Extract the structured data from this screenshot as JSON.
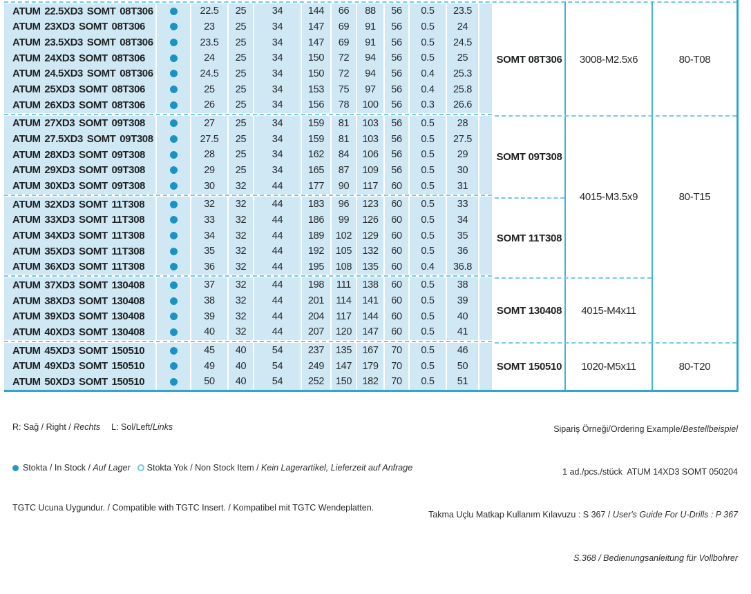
{
  "meta": {
    "colors": {
      "row_bg": "#cfe8f4",
      "stock_dot": "#1a93c4",
      "dash_line": "#74c9e3",
      "panel_line": "#45b2d6",
      "accent_edge": "#2ea6cf",
      "legend_open_ring": "#6ec9e6"
    },
    "stock_dot_meaning": "in-stock"
  },
  "table": {
    "groups": [
      {
        "insert": "SOMT 08T306",
        "screw": "3008-M2.5x6",
        "key": "80-T08",
        "rows": [
          {
            "name": "ATUM 22.5XD3 SOMT 08T306",
            "stock": "in-stock",
            "values": [
              "22.5",
              "25",
              "34",
              "144",
              "66",
              "88",
              "56",
              "0.5",
              "23.5"
            ]
          },
          {
            "name": "ATUM 23XD3 SOMT 08T306",
            "stock": "in-stock",
            "values": [
              "23",
              "25",
              "34",
              "147",
              "69",
              "91",
              "56",
              "0.5",
              "24"
            ]
          },
          {
            "name": "ATUM 23.5XD3 SOMT 08T306",
            "stock": "in-stock",
            "values": [
              "23.5",
              "25",
              "34",
              "147",
              "69",
              "91",
              "56",
              "0.5",
              "24.5"
            ]
          },
          {
            "name": "ATUM 24XD3 SOMT 08T306",
            "stock": "in-stock",
            "values": [
              "24",
              "25",
              "34",
              "150",
              "72",
              "94",
              "56",
              "0.5",
              "25"
            ]
          },
          {
            "name": "ATUM 24.5XD3 SOMT 08T306",
            "stock": "in-stock",
            "values": [
              "24.5",
              "25",
              "34",
              "150",
              "72",
              "94",
              "56",
              "0.4",
              "25.3"
            ]
          },
          {
            "name": "ATUM 25XD3 SOMT 08T306",
            "stock": "in-stock",
            "values": [
              "25",
              "25",
              "34",
              "153",
              "75",
              "97",
              "56",
              "0.4",
              "25.8"
            ]
          },
          {
            "name": "ATUM 26XD3 SOMT 08T306",
            "stock": "in-stock",
            "values": [
              "26",
              "25",
              "34",
              "156",
              "78",
              "100",
              "56",
              "0.3",
              "26.6"
            ]
          }
        ]
      },
      {
        "insert": "SOMT 09T308",
        "screw": "4015-M3.5x9",
        "key": "80-T15",
        "rows": [
          {
            "name": "ATUM 27XD3 SOMT 09T308",
            "stock": "in-stock",
            "values": [
              "27",
              "25",
              "34",
              "159",
              "81",
              "103",
              "56",
              "0.5",
              "28"
            ]
          },
          {
            "name": "ATUM 27.5XD3 SOMT 09T308",
            "stock": "in-stock",
            "values": [
              "27.5",
              "25",
              "34",
              "159",
              "81",
              "103",
              "56",
              "0.5",
              "27.5"
            ]
          },
          {
            "name": "ATUM 28XD3 SOMT 09T308",
            "stock": "in-stock",
            "values": [
              "28",
              "25",
              "34",
              "162",
              "84",
              "106",
              "56",
              "0.5",
              "29"
            ]
          },
          {
            "name": "ATUM 29XD3 SOMT 09T308",
            "stock": "in-stock",
            "values": [
              "29",
              "25",
              "34",
              "165",
              "87",
              "109",
              "56",
              "0.5",
              "30"
            ]
          },
          {
            "name": "ATUM 30XD3 SOMT 09T308",
            "stock": "in-stock",
            "values": [
              "30",
              "32",
              "44",
              "177",
              "90",
              "117",
              "60",
              "0.5",
              "31"
            ]
          }
        ]
      },
      {
        "insert": "SOMT 11T308",
        "screw": "4015-M3.5x9",
        "key": "80-T15",
        "rows": [
          {
            "name": "ATUM 32XD3 SOMT 11T308",
            "stock": "in-stock",
            "values": [
              "32",
              "32",
              "44",
              "183",
              "96",
              "123",
              "60",
              "0.5",
              "33"
            ]
          },
          {
            "name": "ATUM 33XD3 SOMT 11T308",
            "stock": "in-stock",
            "values": [
              "33",
              "32",
              "44",
              "186",
              "99",
              "126",
              "60",
              "0.5",
              "34"
            ]
          },
          {
            "name": "ATUM 34XD3 SOMT 11T308",
            "stock": "in-stock",
            "values": [
              "34",
              "32",
              "44",
              "189",
              "102",
              "129",
              "60",
              "0.5",
              "35"
            ]
          },
          {
            "name": "ATUM 35XD3 SOMT 11T308",
            "stock": "in-stock",
            "values": [
              "35",
              "32",
              "44",
              "192",
              "105",
              "132",
              "60",
              "0.5",
              "36"
            ]
          },
          {
            "name": "ATUM 36XD3 SOMT 11T308",
            "stock": "in-stock",
            "values": [
              "36",
              "32",
              "44",
              "195",
              "108",
              "135",
              "60",
              "0.4",
              "36.8"
            ]
          }
        ]
      },
      {
        "insert": "SOMT 130408",
        "screw": "4015-M4x11",
        "key": "80-T15",
        "rows": [
          {
            "name": "ATUM 37XD3 SOMT 130408",
            "stock": "in-stock",
            "values": [
              "37",
              "32",
              "44",
              "198",
              "111",
              "138",
              "60",
              "0.5",
              "38"
            ]
          },
          {
            "name": "ATUM 38XD3 SOMT 130408",
            "stock": "in-stock",
            "values": [
              "38",
              "32",
              "44",
              "201",
              "114",
              "141",
              "60",
              "0.5",
              "39"
            ]
          },
          {
            "name": "ATUM 39XD3 SOMT 130408",
            "stock": "in-stock",
            "values": [
              "39",
              "32",
              "44",
              "204",
              "117",
              "144",
              "60",
              "0.5",
              "40"
            ]
          },
          {
            "name": "ATUM 40XD3 SOMT 130408",
            "stock": "in-stock",
            "values": [
              "40",
              "32",
              "44",
              "207",
              "120",
              "147",
              "60",
              "0.5",
              "41"
            ]
          }
        ]
      },
      {
        "insert": "SOMT 150510",
        "screw": "1020-M5x11",
        "key": "80-T20",
        "rows": [
          {
            "name": "ATUM 45XD3 SOMT 150510",
            "stock": "in-stock",
            "values": [
              "45",
              "40",
              "54",
              "237",
              "135",
              "167",
              "70",
              "0.5",
              "46"
            ]
          },
          {
            "name": "ATUM 49XD3 SOMT 150510",
            "stock": "in-stock",
            "values": [
              "49",
              "40",
              "54",
              "249",
              "147",
              "179",
              "70",
              "0.5",
              "50"
            ]
          },
          {
            "name": "ATUM 50XD3 SOMT 150510",
            "stock": "in-stock",
            "values": [
              "50",
              "40",
              "54",
              "252",
              "150",
              "182",
              "70",
              "0.5",
              "51"
            ]
          }
        ]
      }
    ]
  },
  "panel": {
    "inserts": [
      "SOMT 08T306",
      "SOMT 09T308",
      "SOMT 11T308",
      "SOMT 130408",
      "SOMT 150510"
    ],
    "screws": [
      "3008-M2.5x6",
      "4015-M3.5x9",
      "4015-M4x11",
      "1020-M5x11"
    ],
    "keys": [
      "80-T08",
      "80-T15",
      "80-T20"
    ]
  },
  "footer": {
    "rl": [
      "R: Sağ / Right / ",
      "Rechts",
      "L: Sol/Left/",
      "Links"
    ],
    "stock": [
      "Stokta / In Stock / ",
      "Auf Lager",
      "Stokta Yok / Non Stock Item / ",
      "Kein Lagerartikel, Lieferzeit auf Anfrage"
    ],
    "tgtc": "TGTC Ucuna Uygundur. / Compatible with TGTC Insert. / Kompatibel mit TGTC Wendeplatten.",
    "order": [
      "Sipariş Örneği/Ordering Example/",
      "Bestellbeispiel"
    ],
    "order_example": "1 ad./pcs./stück  ATUM 14XD3 SOMT 050204",
    "guide": [
      "Takma Uçlu Matkap Kullanım Kılavuzu : S 367 / ",
      "User's Guide For U-Drills : P 367"
    ],
    "guide_de": "S.368 / Bedienungsanleitung für Vollbohrer"
  }
}
